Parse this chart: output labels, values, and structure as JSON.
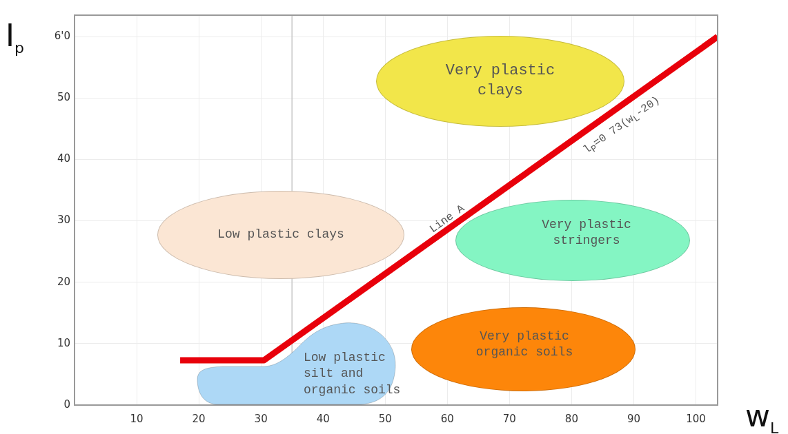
{
  "chart_data": {
    "type": "line",
    "xlabel": "w$_{L}$",
    "ylabel": "I$_{p}$",
    "xlim": [
      0,
      103.5
    ],
    "ylim": [
      0,
      63.5
    ],
    "xticks": [
      10,
      20,
      30,
      40,
      50,
      60,
      70,
      80,
      90,
      100
    ],
    "yticks": [
      0,
      10,
      20,
      30,
      40,
      50,
      {
        "value": 60,
        "label": "6'0"
      }
    ],
    "grid": true,
    "marker": "none",
    "line_style": "solid",
    "series": [
      {
        "type": "line",
        "color": "#e8000b",
        "x": [
          17,
          30.5,
          103.5
        ],
        "values": [
          7.3,
          7.3,
          60
        ]
      }
    ],
    "ref_lines": [
      {
        "axis": "x",
        "value": 35,
        "color": "#c8c8c8"
      }
    ],
    "annotations": [
      "Very plastic clays",
      "Low plastic clays",
      "Very plastic stringers",
      "Very plastic organic soils",
      "Low plastic silt and organic soils",
      "Line A",
      "l$_{P}$=0 73(w$_{L}$-20)"
    ]
  }
}
